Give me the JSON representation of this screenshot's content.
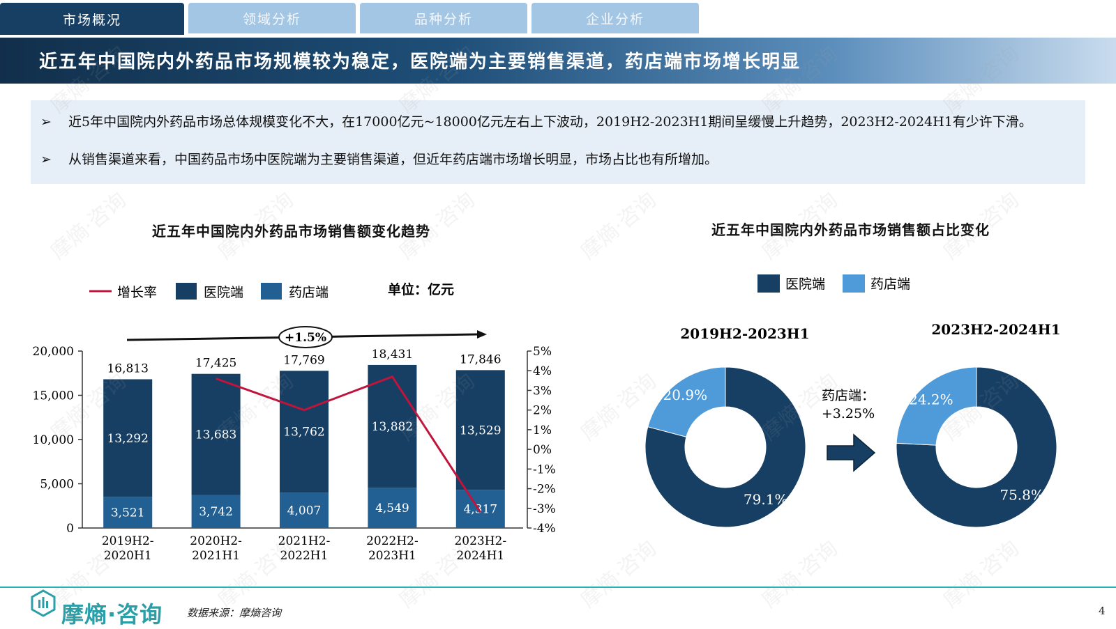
{
  "tabs": [
    {
      "label": "市场概况",
      "active": true
    },
    {
      "label": "领域分析",
      "active": false
    },
    {
      "label": "品种分析",
      "active": false
    },
    {
      "label": "企业分析",
      "active": false
    }
  ],
  "banner_title": "近五年中国院内外药品市场规模较为稳定，医院端为主要销售渠道，药店端市场增长明显",
  "bullets": [
    "近5年中国院内外药品市场总体规模变化不大，在17000亿元~18000亿元左右上下波动，2019H2-2023H1期间呈缓慢上升趋势，2023H2-2024H1有少许下滑。",
    "从销售渠道来看，中国药品市场中医院端为主要销售渠道，但近年药店端市场增长明显，市场占比也有所增加。"
  ],
  "bullet_mark": "➢",
  "colors": {
    "hospital": "#173f63",
    "pharmacy": "#225f93",
    "growth": "#c0143c",
    "pie_pharmacy": "#4f9ad8",
    "pie_hospital": "#173f63"
  },
  "chart_data": [
    {
      "type": "bar",
      "title": "近五年中国院内外药品市场销售额变化趋势",
      "unit": "单位：亿元",
      "legend": [
        "增长率",
        "医院端",
        "药店端"
      ],
      "categories": [
        "2019H2-2020H1",
        "2020H2-2021H1",
        "2021H2-2022H1",
        "2022H2-2023H1",
        "2023H2-2024H1"
      ],
      "series": [
        {
          "name": "医院端",
          "values": [
            13292,
            13683,
            13762,
            13882,
            13529
          ]
        },
        {
          "name": "药店端",
          "values": [
            3521,
            3742,
            4007,
            4549,
            4317
          ]
        }
      ],
      "totals": [
        16813,
        17425,
        17769,
        18431,
        17846
      ],
      "total_labels": [
        "16,813",
        "17,425",
        "17,769",
        "18,431",
        "17,846"
      ],
      "hospital_labels": [
        "13,292",
        "13,683",
        "13,762",
        "13,882",
        "13,529"
      ],
      "pharmacy_labels": [
        "3,521",
        "3,742",
        "4,007",
        "4,549",
        "4,317"
      ],
      "growth": {
        "name": "增长率",
        "values": [
          null,
          3.6,
          2.0,
          3.7,
          -3.2
        ]
      },
      "yticks": [
        "20,000",
        "15,000",
        "10,000",
        "5,000",
        "0"
      ],
      "ylim": [
        0,
        20000
      ],
      "y2ticks": [
        "5%",
        "4%",
        "3%",
        "2%",
        "1%",
        "0%",
        "-1%",
        "-2%",
        "-3%",
        "-4%"
      ],
      "y2lim": [
        -4,
        5
      ],
      "cagr_label": "+1.5%"
    },
    {
      "type": "pie",
      "title": "近五年中国院内外药品市场销售额占比变化",
      "legend": [
        "医院端",
        "药店端"
      ],
      "pies": [
        {
          "label": "2019H2-2023H1",
          "values": [
            79.1,
            20.9
          ],
          "value_labels": [
            "79.1%",
            "20.9%"
          ]
        },
        {
          "label": "2023H2-2024H1",
          "values": [
            75.8,
            24.2
          ],
          "value_labels": [
            "75.8%",
            "24.2%"
          ]
        }
      ],
      "change_label_1": "药店端：",
      "change_label_2": "+3.25%"
    }
  ],
  "footer": {
    "logo": "摩熵·咨询",
    "source": "数据来源：摩熵咨询",
    "page": "4"
  },
  "watermark": "摩熵·咨询"
}
